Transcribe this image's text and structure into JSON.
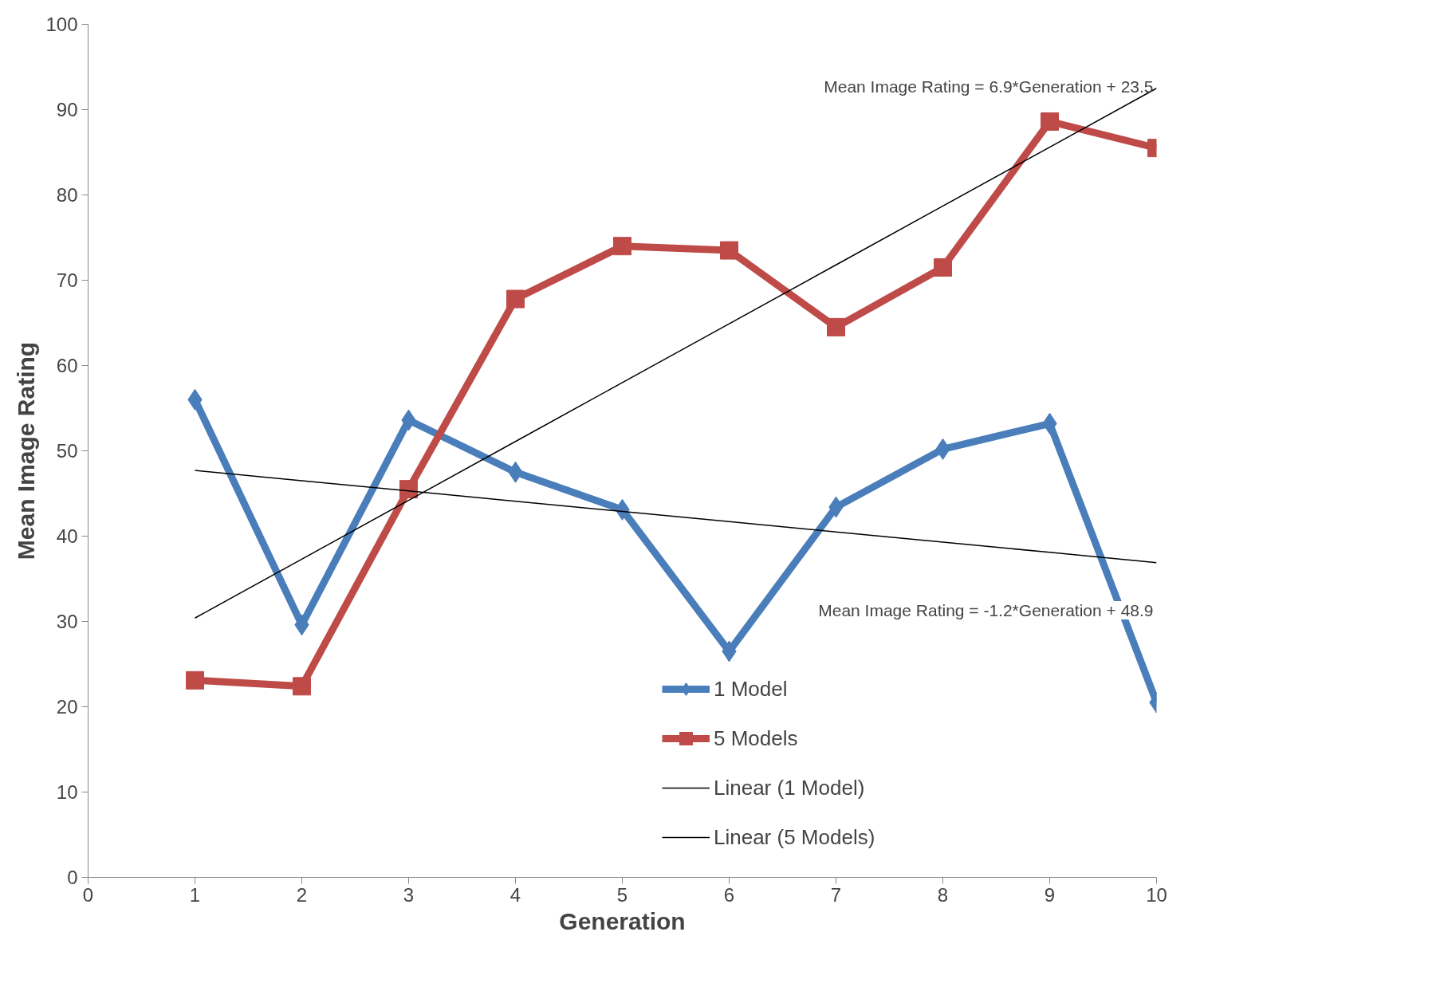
{
  "chart_data": {
    "type": "line",
    "xlabel": "Generation",
    "ylabel": "Mean Image Rating",
    "x": [
      1,
      2,
      3,
      4,
      5,
      6,
      7,
      8,
      9,
      10
    ],
    "series": [
      {
        "name": "1 Model",
        "color": "#4a7ebb",
        "marker": "diamond",
        "values": [
          56,
          29.6,
          53.6,
          47.5,
          43.1,
          26.5,
          43.4,
          50.2,
          53.2,
          20.5
        ]
      },
      {
        "name": "5 Models",
        "color": "#be4b48",
        "marker": "square",
        "values": [
          23.1,
          22.4,
          45.5,
          67.8,
          74.0,
          73.5,
          64.5,
          71.5,
          88.6,
          85.5
        ]
      },
      {
        "name": "Linear (1 Model)",
        "type": "line",
        "color": "#000000",
        "marker": "none",
        "values": [
          47.7,
          46.5,
          45.3,
          44.1,
          42.9,
          41.7,
          40.5,
          39.3,
          38.1,
          36.9
        ]
      },
      {
        "name": "Linear (5 Models)",
        "type": "line",
        "color": "#000000",
        "marker": "none",
        "values": [
          30.4,
          37.3,
          44.2,
          51.1,
          58.0,
          64.9,
          71.8,
          78.7,
          85.6,
          92.5
        ]
      }
    ],
    "annotations": [
      "Mean Image Rating = 6.9*Generation + 23.5",
      "Mean Image Rating = -1.2*Generation + 48.9"
    ],
    "xlim": [
      0,
      10
    ],
    "ylim": [
      0,
      100
    ],
    "xticks": [
      0,
      1,
      2,
      3,
      4,
      5,
      6,
      7,
      8,
      9,
      10
    ],
    "yticks": [
      0,
      10,
      20,
      30,
      40,
      50,
      60,
      70,
      80,
      90,
      100
    ],
    "grid": false,
    "legend": "bottom right"
  }
}
